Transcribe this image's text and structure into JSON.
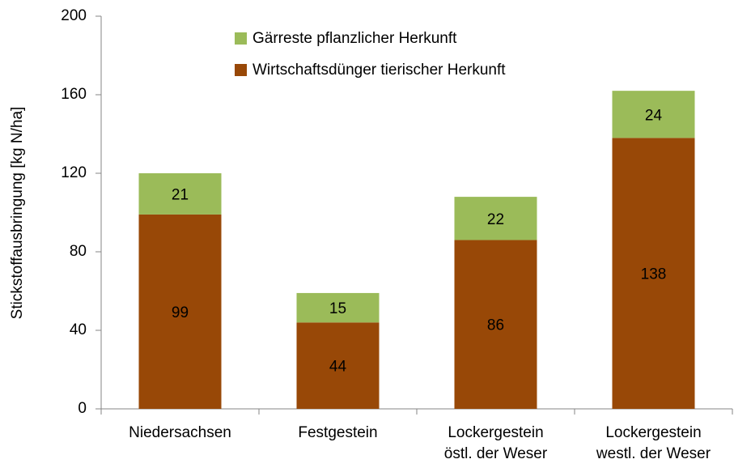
{
  "chart_data": {
    "type": "stacked_bar",
    "y_label": "Stickstoffausbringung [kg N/ha]",
    "categories": [
      [
        "Niedersachsen"
      ],
      [
        "Festgestein"
      ],
      [
        "Lockergestein",
        "östl. der Weser"
      ],
      [
        "Lockergestein",
        "westl. der Weser"
      ]
    ],
    "series": [
      {
        "name": "Wirtschaftsdünger tierischer Herkunft",
        "color": "#984807",
        "values": [
          99,
          44,
          86,
          138
        ]
      },
      {
        "name": "Gärreste pflanzlicher Herkunft",
        "color": "#9bbb59",
        "values": [
          21,
          15,
          22,
          24
        ]
      }
    ],
    "ylim": [
      0,
      200
    ],
    "yticks": [
      0,
      40,
      80,
      120,
      160,
      200
    ],
    "grid": false
  }
}
